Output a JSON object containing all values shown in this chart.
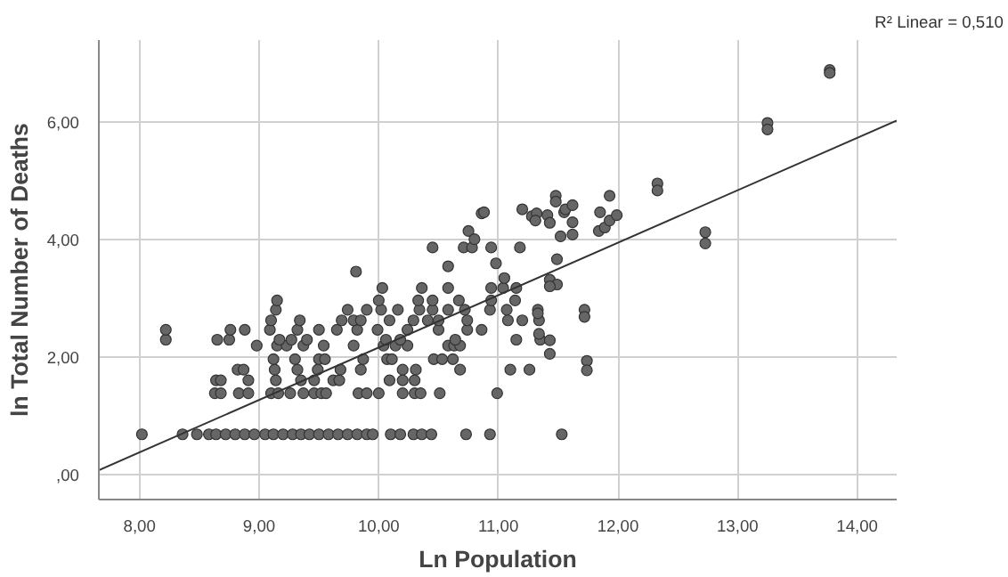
{
  "chart_data": {
    "type": "scatter",
    "xlabel": "Ln Population",
    "ylabel": "ln Total Number of Deaths",
    "annotations": [
      "R² Linear = 0,510"
    ],
    "xlim": [
      7.66,
      14.33
    ],
    "ylim": [
      -0.42,
      7.4
    ],
    "xticks": [
      {
        "value": 8,
        "label": "8,00"
      },
      {
        "value": 9,
        "label": "9,00"
      },
      {
        "value": 10,
        "label": "10,00"
      },
      {
        "value": 11,
        "label": "11,00"
      },
      {
        "value": 12,
        "label": "12,00"
      },
      {
        "value": 13,
        "label": "13,00"
      },
      {
        "value": 14,
        "label": "14,00"
      }
    ],
    "yticks": [
      {
        "value": 0,
        "label": ",00"
      },
      {
        "value": 2,
        "label": "2,00"
      },
      {
        "value": 4,
        "label": "4,00"
      },
      {
        "value": 6,
        "label": "6,00"
      }
    ],
    "grid": true,
    "marker": "circle",
    "series": [
      {
        "type": "scatter",
        "color": "#666666",
        "x": [
          8.02,
          8.36,
          8.48,
          8.58,
          8.64,
          8.72,
          8.8,
          8.88,
          8.96,
          9.05,
          9.12,
          9.2,
          9.28,
          9.35,
          9.42,
          9.5,
          9.58,
          9.66,
          9.74,
          9.82,
          9.9,
          9.95,
          10.1,
          10.18,
          10.29,
          10.36,
          10.44,
          10.73,
          10.93,
          11.53,
          8.63,
          8.68,
          8.83,
          8.91,
          9.1,
          9.16,
          9.26,
          9.37,
          9.46,
          9.52,
          9.56,
          9.83,
          9.9,
          10.0,
          10.2,
          10.3,
          10.35,
          10.51,
          10.99,
          8.64,
          8.68,
          8.91,
          9.14,
          9.35,
          9.46,
          9.62,
          9.67,
          10.09,
          10.2,
          10.3,
          8.82,
          8.87,
          9.13,
          9.32,
          9.49,
          9.68,
          9.85,
          10.2,
          10.31,
          10.68,
          11.1,
          11.26,
          9.12,
          9.3,
          9.5,
          9.55,
          9.87,
          10.07,
          10.11,
          10.46,
          10.53,
          10.62,
          8.98,
          9.15,
          9.23,
          9.37,
          9.54,
          9.79,
          10.04,
          10.14,
          10.24,
          10.58,
          10.63,
          10.68,
          8.22,
          8.65,
          8.75,
          9.17,
          9.27,
          9.4,
          10.06,
          10.18,
          10.64,
          11.15,
          11.35,
          8.22,
          8.76,
          8.88,
          9.09,
          9.32,
          9.5,
          9.65,
          9.82,
          9.99,
          10.24,
          10.5,
          10.74,
          10.86,
          9.1,
          9.34,
          9.69,
          9.79,
          9.85,
          10.09,
          10.29,
          10.41,
          10.5,
          10.74,
          11.08,
          11.2,
          11.34,
          9.14,
          9.74,
          9.9,
          10.02,
          10.16,
          10.34,
          10.45,
          10.58,
          10.72,
          10.93,
          11.07,
          9.15,
          10.0,
          10.33,
          10.45,
          10.67,
          10.94,
          11.14,
          10.03,
          10.36,
          10.58,
          10.94,
          11.04,
          11.15,
          9.81,
          10.58,
          10.98,
          11.05,
          10.45,
          10.71,
          10.78,
          10.94,
          11.18,
          10.75,
          10.8,
          10.86,
          11.28,
          11.32,
          11.2,
          10.88,
          11.31,
          11.41,
          11.43,
          11.48,
          11.48,
          11.52,
          11.55,
          11.56,
          11.62,
          11.62,
          11.62,
          11.85,
          11.84,
          11.89,
          11.93,
          11.93,
          11.99,
          12.33,
          12.33,
          12.73,
          12.73,
          13.25,
          13.25,
          13.77,
          13.77,
          11.49,
          11.43,
          11.49,
          11.43,
          11.33,
          11.33,
          11.34,
          11.43,
          11.43,
          11.72,
          11.72,
          11.74,
          11.74
        ],
        "values": [
          0.69,
          0.69,
          0.69,
          0.69,
          0.69,
          0.69,
          0.69,
          0.69,
          0.69,
          0.69,
          0.69,
          0.69,
          0.69,
          0.69,
          0.69,
          0.69,
          0.69,
          0.69,
          0.69,
          0.69,
          0.69,
          0.69,
          0.69,
          0.69,
          0.69,
          0.69,
          0.69,
          0.69,
          0.69,
          0.69,
          1.39,
          1.39,
          1.39,
          1.39,
          1.39,
          1.39,
          1.39,
          1.39,
          1.39,
          1.39,
          1.39,
          1.39,
          1.39,
          1.39,
          1.39,
          1.39,
          1.39,
          1.39,
          1.39,
          1.61,
          1.61,
          1.61,
          1.61,
          1.61,
          1.61,
          1.61,
          1.61,
          1.61,
          1.61,
          1.61,
          1.79,
          1.79,
          1.79,
          1.79,
          1.79,
          1.79,
          1.79,
          1.79,
          1.79,
          1.79,
          1.79,
          1.79,
          1.97,
          1.97,
          1.97,
          1.97,
          1.97,
          1.97,
          1.97,
          1.97,
          1.97,
          1.97,
          2.2,
          2.2,
          2.2,
          2.2,
          2.2,
          2.2,
          2.2,
          2.2,
          2.2,
          2.2,
          2.2,
          2.2,
          2.3,
          2.3,
          2.3,
          2.3,
          2.3,
          2.3,
          2.3,
          2.3,
          2.3,
          2.3,
          2.3,
          2.47,
          2.47,
          2.47,
          2.47,
          2.47,
          2.47,
          2.47,
          2.47,
          2.47,
          2.47,
          2.47,
          2.47,
          2.47,
          2.63,
          2.63,
          2.63,
          2.63,
          2.63,
          2.63,
          2.63,
          2.63,
          2.63,
          2.63,
          2.63,
          2.63,
          2.63,
          2.81,
          2.81,
          2.81,
          2.81,
          2.81,
          2.81,
          2.81,
          2.81,
          2.81,
          2.81,
          2.81,
          2.97,
          2.97,
          2.97,
          2.97,
          2.97,
          2.97,
          2.97,
          3.18,
          3.18,
          3.18,
          3.18,
          3.18,
          3.18,
          3.46,
          3.55,
          3.6,
          3.35,
          3.87,
          3.87,
          3.87,
          3.87,
          3.87,
          4.15,
          4.01,
          4.45,
          4.4,
          4.45,
          4.52,
          4.47,
          4.33,
          4.42,
          4.29,
          4.75,
          4.65,
          4.06,
          4.47,
          4.52,
          4.59,
          4.3,
          4.09,
          4.47,
          4.15,
          4.21,
          4.75,
          4.33,
          4.42,
          4.96,
          4.84,
          4.13,
          3.94,
          5.99,
          5.88,
          6.89,
          6.84,
          3.67,
          3.32,
          3.24,
          3.21,
          2.81,
          2.75,
          2.4,
          2.29,
          2.06,
          2.81,
          2.69,
          1.94,
          1.78
        ]
      },
      {
        "type": "line",
        "color": "#333333",
        "marker": "none",
        "x": [
          7.66,
          14.33
        ],
        "values": [
          0.08,
          6.03
        ]
      }
    ]
  }
}
